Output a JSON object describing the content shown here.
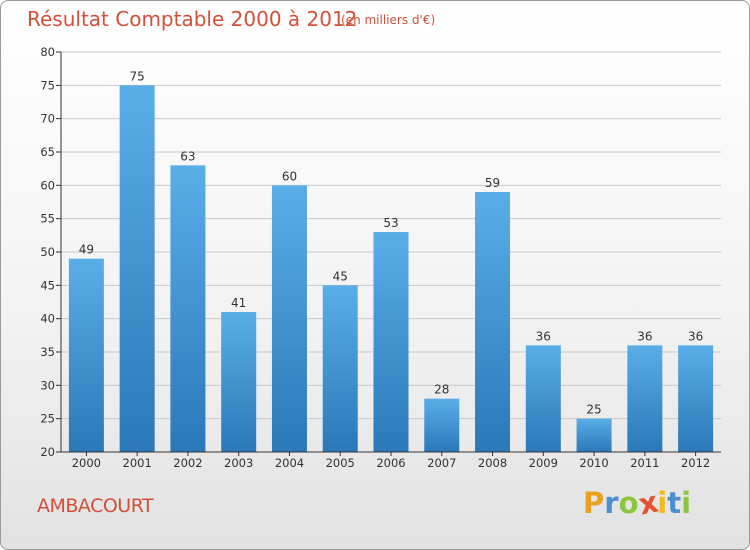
{
  "header": {
    "title": "Résultat Comptable 2000 à 2012",
    "subtitle": "(en milliers d'€)"
  },
  "footer": {
    "commune": "AMBACOURT",
    "logo_letters": [
      "P",
      "r",
      "o",
      "x",
      "i",
      "t",
      "i"
    ],
    "logo_colors": [
      "#e8a21f",
      "#4a8fd0",
      "#8cc63e",
      "#e84f2b",
      "#f2bc1b",
      "#4a8fd0",
      "#8cc63e"
    ]
  },
  "colors": {
    "bar_top": "#5aaee8",
    "bar_bottom": "#2a78b8",
    "grid": "#c9c9c9",
    "axis": "#333333"
  },
  "chart_data": {
    "type": "bar",
    "title": "Résultat Comptable 2000 à 2012",
    "subtitle": "(en milliers d'€)",
    "xlabel": "",
    "ylabel": "",
    "categories": [
      "2000",
      "2001",
      "2002",
      "2003",
      "2004",
      "2005",
      "2006",
      "2007",
      "2008",
      "2009",
      "2010",
      "2011",
      "2012"
    ],
    "values": [
      49,
      75,
      63,
      41,
      60,
      45,
      53,
      28,
      59,
      36,
      25,
      36,
      36
    ],
    "ylim": [
      20,
      80
    ],
    "yticks": [
      20,
      25,
      30,
      35,
      40,
      45,
      50,
      55,
      60,
      65,
      70,
      75,
      80
    ],
    "grid": true,
    "legend": "none"
  }
}
